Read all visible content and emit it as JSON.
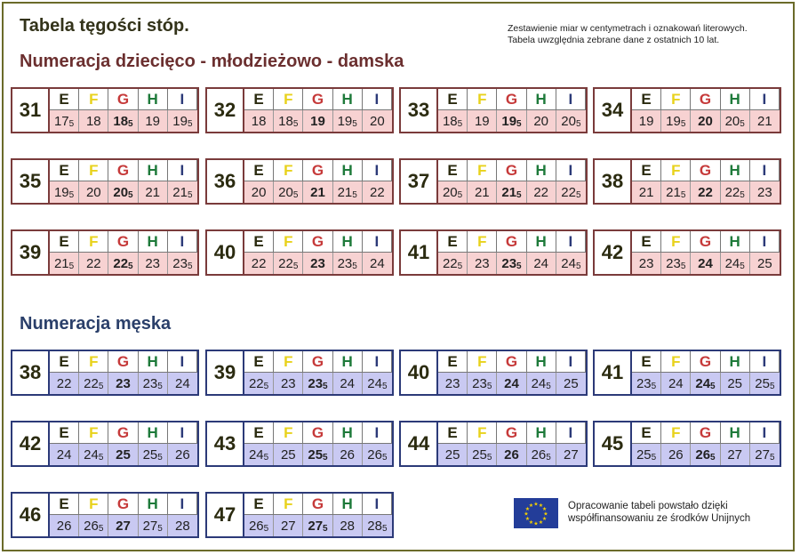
{
  "title": "Tabela tęgości stóp.",
  "note_line1": "Zestawienie miar w centymetrach i oznakowań literowych.",
  "note_line2": "Tabela uwzględnia zebrane dane z ostatnich 10 lat.",
  "section_women": "Numeracja dziecięco - młodzieżowo - damska",
  "section_men": "Numeracja męska",
  "letters": [
    {
      "t": "E",
      "color": "#2b2b10"
    },
    {
      "t": "F",
      "color": "#e8d21c"
    },
    {
      "t": "G",
      "color": "#c63a3a"
    },
    {
      "t": "H",
      "color": "#1e7a3a"
    },
    {
      "t": "I",
      "color": "#2c3a78"
    }
  ],
  "women": [
    {
      "size": "31",
      "vals": [
        "17,5",
        "18",
        "18,5",
        "19",
        "19,5"
      ]
    },
    {
      "size": "32",
      "vals": [
        "18",
        "18,5",
        "19",
        "19,5",
        "20"
      ]
    },
    {
      "size": "33",
      "vals": [
        "18,5",
        "19",
        "19,5",
        "20",
        "20,5"
      ]
    },
    {
      "size": "34",
      "vals": [
        "19",
        "19,5",
        "20",
        "20,5",
        "21"
      ]
    },
    {
      "size": "35",
      "vals": [
        "19,5",
        "20",
        "20,5",
        "21",
        "21,5"
      ]
    },
    {
      "size": "36",
      "vals": [
        "20",
        "20,5",
        "21",
        "21,5",
        "22"
      ]
    },
    {
      "size": "37",
      "vals": [
        "20,5",
        "21",
        "21,5",
        "22",
        "22,5"
      ]
    },
    {
      "size": "38",
      "vals": [
        "21",
        "21,5",
        "22",
        "22,5",
        "23"
      ]
    },
    {
      "size": "39",
      "vals": [
        "21,5",
        "22",
        "22,5",
        "23",
        "23,5"
      ]
    },
    {
      "size": "40",
      "vals": [
        "22",
        "22,5",
        "23",
        "23,5",
        "24"
      ]
    },
    {
      "size": "41",
      "vals": [
        "22,5",
        "23",
        "23,5",
        "24",
        "24,5"
      ]
    },
    {
      "size": "42",
      "vals": [
        "23",
        "23,5",
        "24",
        "24,5",
        "25"
      ]
    }
  ],
  "men": [
    {
      "size": "38",
      "vals": [
        "22",
        "22,5",
        "23",
        "23,5",
        "24"
      ]
    },
    {
      "size": "39",
      "vals": [
        "22,5",
        "23",
        "23,5",
        "24",
        "24,5"
      ]
    },
    {
      "size": "40",
      "vals": [
        "23",
        "23,5",
        "24",
        "24,5",
        "25"
      ]
    },
    {
      "size": "41",
      "vals": [
        "23,5",
        "24",
        "24,5",
        "25",
        "25,5"
      ]
    },
    {
      "size": "42",
      "vals": [
        "24",
        "24,5",
        "25",
        "25,5",
        "26"
      ]
    },
    {
      "size": "43",
      "vals": [
        "24,5",
        "25",
        "25,5",
        "26",
        "26,5"
      ]
    },
    {
      "size": "44",
      "vals": [
        "25",
        "25,5",
        "26",
        "26,5",
        "27"
      ]
    },
    {
      "size": "45",
      "vals": [
        "25,5",
        "26",
        "26,5",
        "27",
        "27,5"
      ]
    },
    {
      "size": "46",
      "vals": [
        "26",
        "26,5",
        "27",
        "27,5",
        "28"
      ]
    },
    {
      "size": "47",
      "vals": [
        "26,5",
        "27",
        "27,5",
        "28",
        "28,5"
      ]
    }
  ],
  "eu_line1": "Opracowanie tabeli powstało dzięki",
  "eu_line2": "współfinansowaniu ze środków Unijnych",
  "eu_flag_color": "#233d99",
  "eu_star_color": "#f4d000"
}
